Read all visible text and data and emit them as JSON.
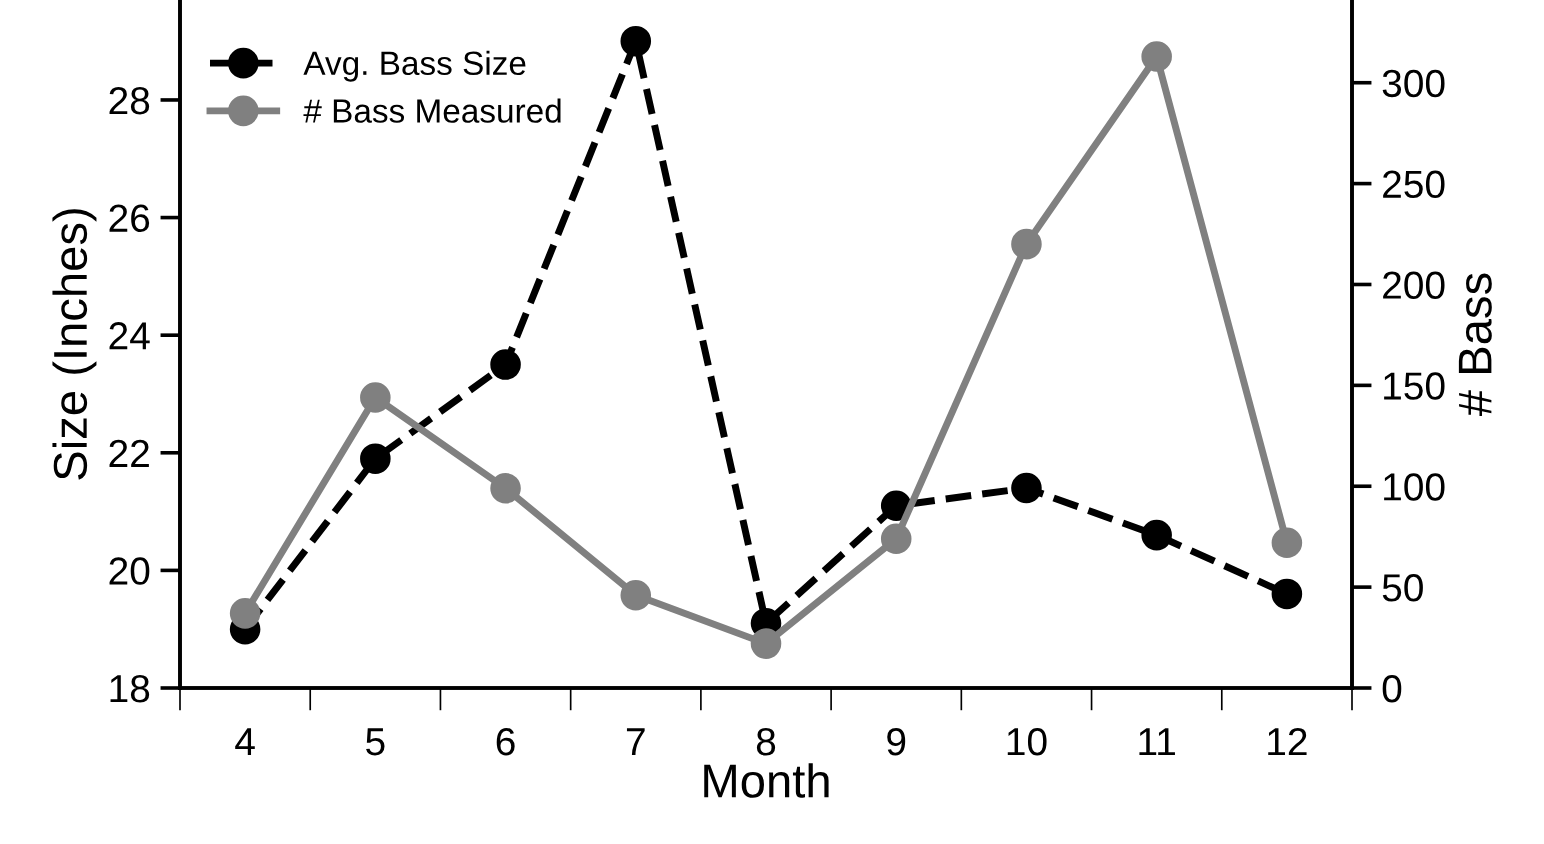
{
  "chart_data": {
    "type": "line",
    "xlabel": "Month",
    "ylabel": "Size (Inches)",
    "y2label": "# Bass",
    "categories": [
      "4",
      "5",
      "6",
      "7",
      "8",
      "9",
      "10",
      "11",
      "12"
    ],
    "series": [
      {
        "name": "Avg. Bass Size",
        "color": "#000000",
        "line_style": "dashed",
        "marker": "circle",
        "values": [
          19.0,
          21.9,
          23.5,
          29.0,
          19.1,
          21.1,
          21.4,
          20.6,
          19.6
        ]
      },
      {
        "name": "# Bass Measured",
        "color": "#808080",
        "line_style": "solid",
        "marker": "circle",
        "axis": "y2",
        "values": [
          37,
          144,
          99,
          46,
          22,
          74,
          220,
          313,
          72
        ]
      }
    ],
    "ylim": [
      18,
      29.7
    ],
    "yticks": [
      18,
      20,
      22,
      24,
      26,
      28
    ],
    "y2lim": [
      0,
      341
    ],
    "y2ticks": [
      0,
      50,
      100,
      150,
      200,
      250,
      300
    ],
    "grid": false,
    "legend": "top left"
  }
}
